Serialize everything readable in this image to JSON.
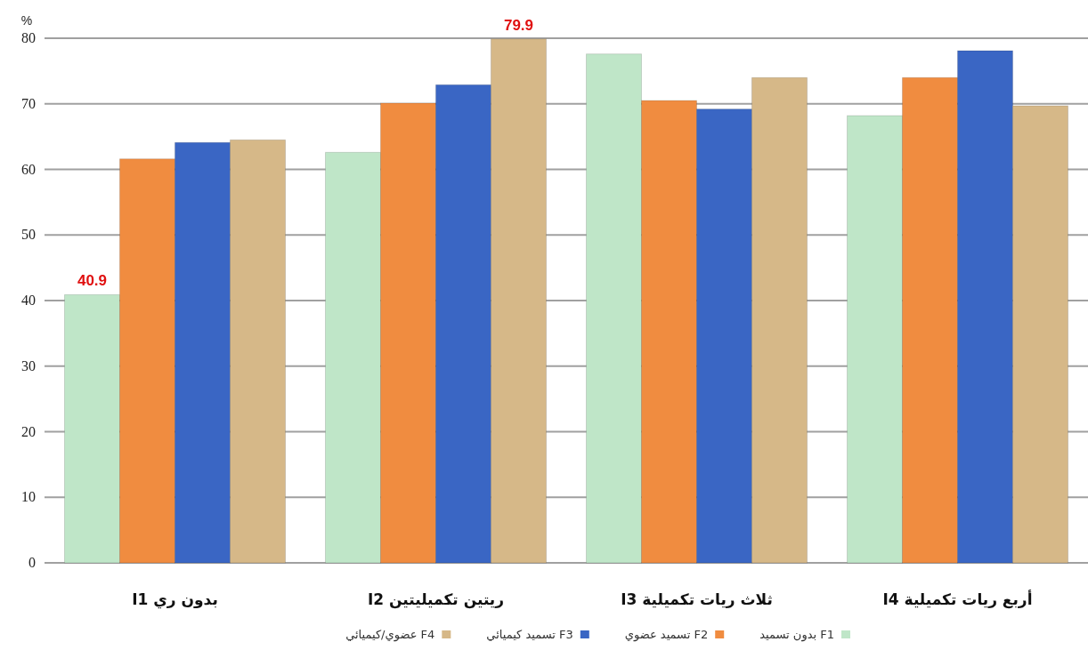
{
  "chart_data": {
    "type": "bar",
    "ylabel": "%",
    "categories": [
      "بدون ري I1",
      "ريتين تكميليتين I2",
      "ثلاث ريات تكميلية I3",
      "أربع ريات تكميلية I4"
    ],
    "series": [
      {
        "name": "بدون تسميد F1",
        "color": "#bfe6c8",
        "values": [
          40.9,
          62.6,
          77.6,
          68.2
        ],
        "value_labels": [
          "40.9",
          null,
          null,
          null
        ]
      },
      {
        "name": "تسميد عضوي F2",
        "color": "#f08c40",
        "values": [
          61.6,
          70.1,
          70.5,
          74.0
        ],
        "value_labels": [
          null,
          null,
          null,
          null
        ]
      },
      {
        "name": "تسميد كيميائي F3",
        "color": "#3a66c4",
        "values": [
          64.1,
          72.9,
          69.2,
          78.1
        ],
        "value_labels": [
          null,
          null,
          null,
          null
        ]
      },
      {
        "name": "عضوي/كيميائي F4",
        "color": "#d6b888",
        "values": [
          64.5,
          79.9,
          74.0,
          69.7
        ],
        "value_labels": [
          null,
          "79.9",
          null,
          null
        ]
      }
    ],
    "ylim": [
      0,
      80
    ],
    "yticks": [
      0,
      10,
      20,
      30,
      40,
      50,
      60,
      70,
      80
    ],
    "grid": "y",
    "legend": "bottom"
  }
}
